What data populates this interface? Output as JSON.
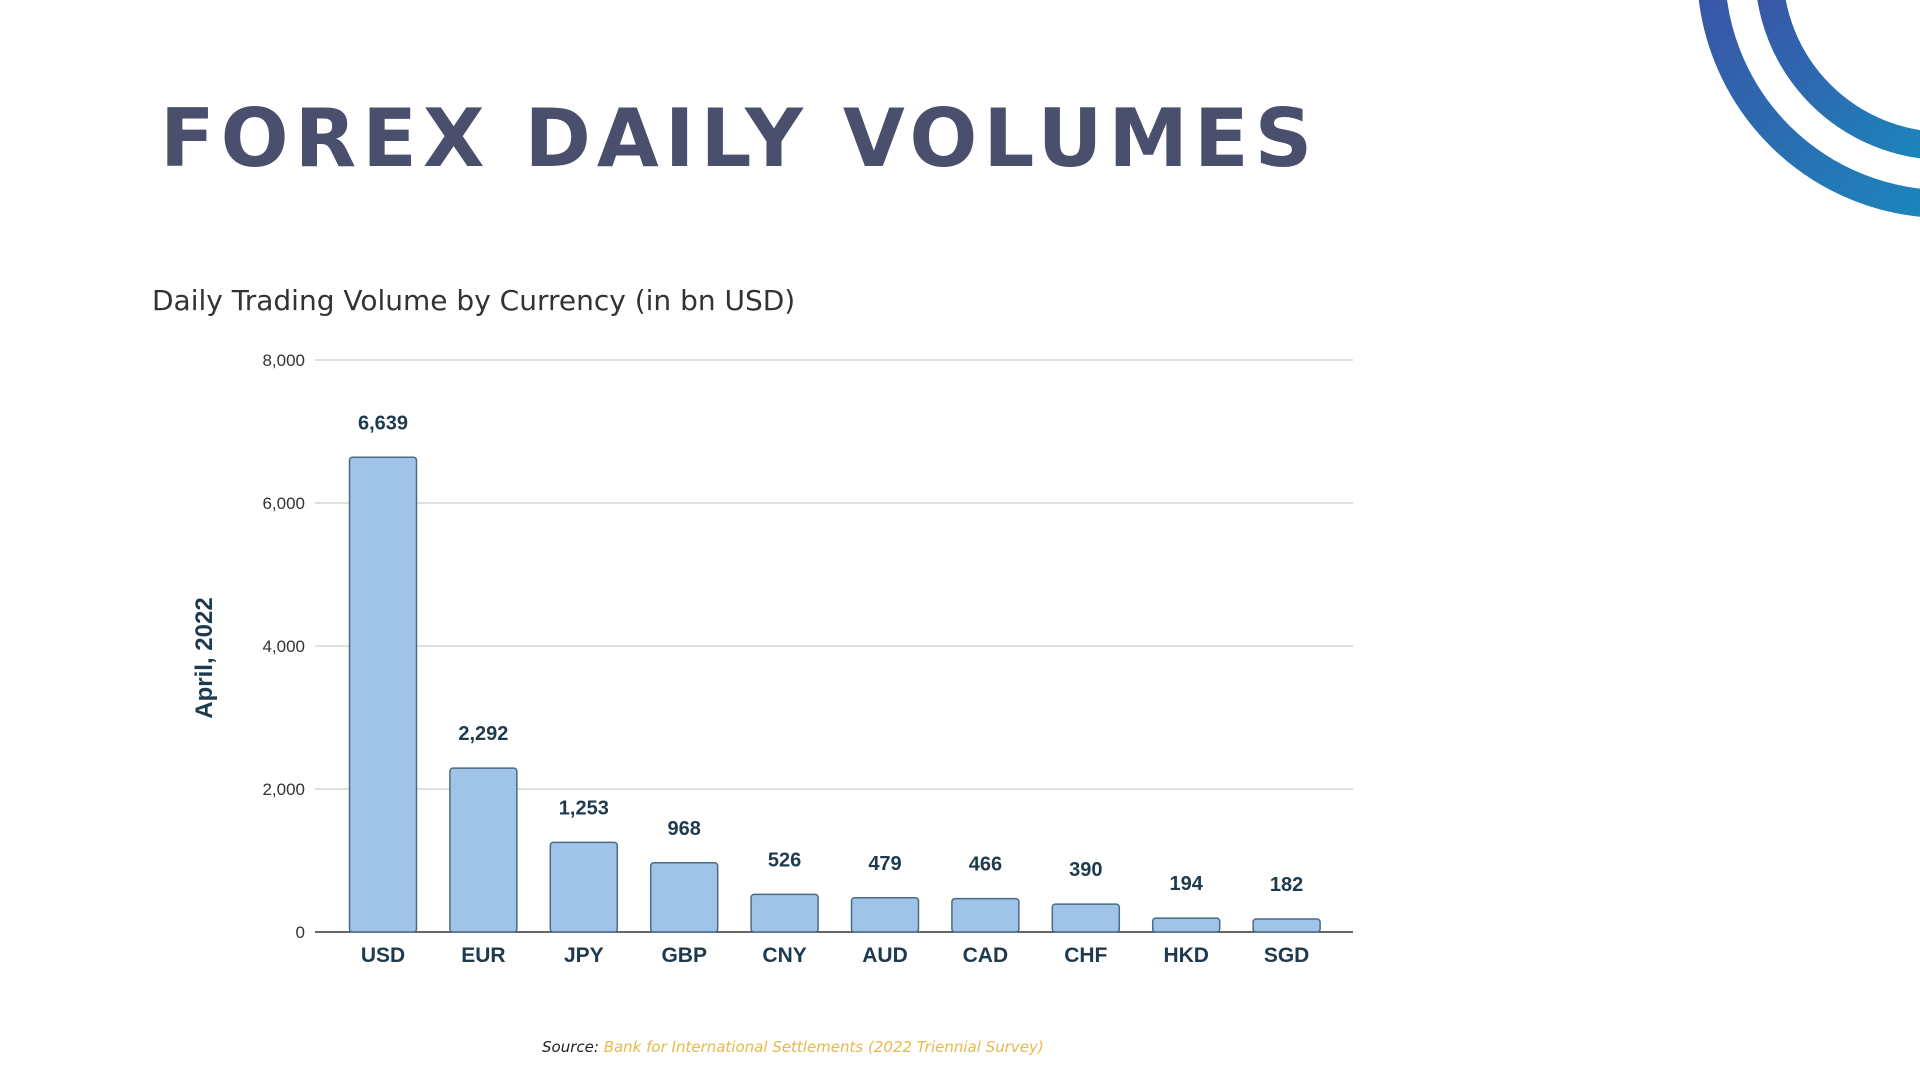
{
  "slide": {
    "title": "FOREX DAILY VOLUMES",
    "source_prefix": "Source:",
    "source_text": "Bank for International Settlements (2022 Triennial Survey)",
    "colors": {
      "title": "#4a4f6e",
      "bar_fill": "#a0c4e8",
      "bar_stroke": "#4d6a85",
      "label": "#1e3a4f",
      "source_link": "#e8b84a",
      "arc_gradient": [
        "#4b3a9a",
        "#0aa0c8"
      ]
    }
  },
  "chart_data": {
    "type": "bar",
    "title": "Daily Trading Volume by Currency (in bn USD)",
    "xlabel": "",
    "ylabel": "April, 2022",
    "categories": [
      "USD",
      "EUR",
      "JPY",
      "GBP",
      "CNY",
      "AUD",
      "CAD",
      "CHF",
      "HKD",
      "SGD"
    ],
    "values": [
      6639,
      2292,
      1253,
      968,
      526,
      479,
      466,
      390,
      194,
      182
    ],
    "data_labels": [
      "6,639",
      "2,292",
      "1,253",
      "968",
      "526",
      "479",
      "466",
      "390",
      "194",
      "182"
    ],
    "ylim": [
      0,
      8000
    ],
    "yticks": [
      0,
      2000,
      4000,
      6000,
      8000
    ],
    "ytick_labels": [
      "0",
      "2,000",
      "4,000",
      "6,000",
      "8,000"
    ],
    "grid": true,
    "legend": "none"
  }
}
